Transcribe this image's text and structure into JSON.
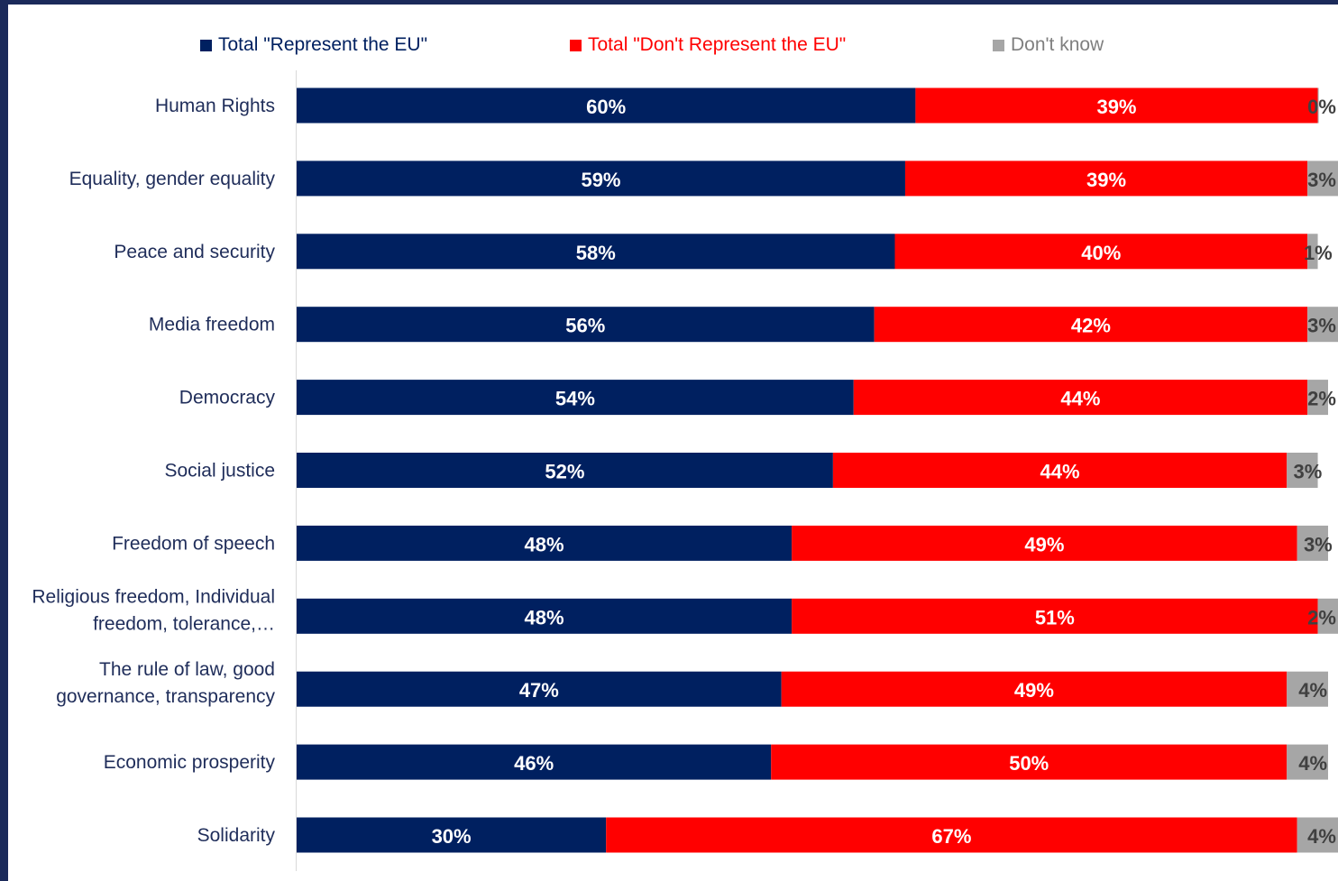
{
  "chart_data": {
    "type": "bar",
    "orientation": "horizontal",
    "stacked": true,
    "categories": [
      "Human Rights",
      "Equality, gender equality",
      "Peace and security",
      "Media freedom",
      "Democracy",
      "Social justice",
      "Freedom of speech",
      "Religious freedom, Individual freedom, tolerance,…",
      "The rule of law, good governance, transparency",
      "Economic prosperity",
      "Solidarity"
    ],
    "series": [
      {
        "name": "Total \"Represent the EU\"",
        "color": "#002060",
        "label_color": "#ffffff",
        "values": [
          60,
          59,
          58,
          56,
          54,
          52,
          48,
          48,
          47,
          46,
          30
        ],
        "labels": [
          "60%",
          "59%",
          "58%",
          "56%",
          "54%",
          "52%",
          "48%",
          "48%",
          "47%",
          "46%",
          "30%"
        ]
      },
      {
        "name": "Total \"Don't Represent the EU\"",
        "color": "#ff0000",
        "label_color": "#ffffff",
        "values": [
          39,
          39,
          40,
          42,
          44,
          44,
          49,
          51,
          49,
          50,
          67
        ],
        "labels": [
          "39%",
          "39%",
          "40%",
          "42%",
          "44%",
          "44%",
          "49%",
          "51%",
          "49%",
          "50%",
          "67%"
        ]
      },
      {
        "name": "Don't know",
        "color": "#a6a6a6",
        "label_color": "#404040",
        "values": [
          0,
          3,
          1,
          3,
          2,
          3,
          3,
          2,
          4,
          4,
          4
        ],
        "labels": [
          "0%",
          "3%",
          "1%",
          "3%",
          "2%",
          "3%",
          "3%",
          "2%",
          "4%",
          "4%",
          "4%"
        ]
      }
    ],
    "legend_position": "top",
    "grid": false,
    "xlim": [
      0,
      100
    ]
  }
}
